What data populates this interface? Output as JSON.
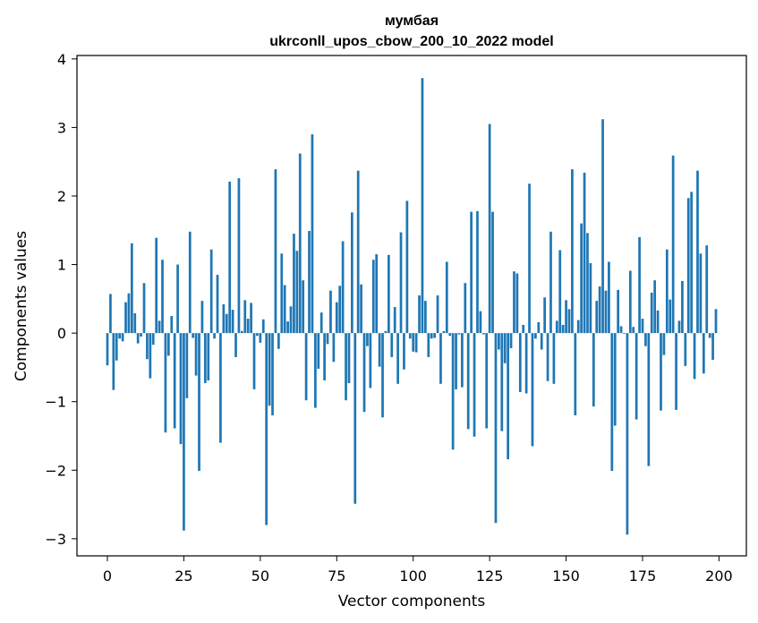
{
  "chart_data": {
    "type": "bar",
    "title": "мумбая",
    "subtitle": "ukrconll_upos_cbow_200_10_2022 model",
    "xlabel": "Vector components",
    "ylabel": "Components values",
    "xlim": [
      -9.95,
      208.95
    ],
    "ylim": [
      -3.25,
      4.05
    ],
    "xticks": [
      0,
      25,
      50,
      75,
      100,
      125,
      150,
      175,
      200
    ],
    "yticks": [
      -3,
      -2,
      -1,
      0,
      1,
      2,
      3,
      4
    ],
    "color": "#1f77b4",
    "grid": false,
    "x": [
      0,
      1,
      2,
      3,
      4,
      5,
      6,
      7,
      8,
      9,
      10,
      11,
      12,
      13,
      14,
      15,
      16,
      17,
      18,
      19,
      20,
      21,
      22,
      23,
      24,
      25,
      26,
      27,
      28,
      29,
      30,
      31,
      32,
      33,
      34,
      35,
      36,
      37,
      38,
      39,
      40,
      41,
      42,
      43,
      44,
      45,
      46,
      47,
      48,
      49,
      50,
      51,
      52,
      53,
      54,
      55,
      56,
      57,
      58,
      59,
      60,
      61,
      62,
      63,
      64,
      65,
      66,
      67,
      68,
      69,
      70,
      71,
      72,
      73,
      74,
      75,
      76,
      77,
      78,
      79,
      80,
      81,
      82,
      83,
      84,
      85,
      86,
      87,
      88,
      89,
      90,
      91,
      92,
      93,
      94,
      95,
      96,
      97,
      98,
      99,
      100,
      101,
      102,
      103,
      104,
      105,
      106,
      107,
      108,
      109,
      110,
      111,
      112,
      113,
      114,
      115,
      116,
      117,
      118,
      119,
      120,
      121,
      122,
      123,
      124,
      125,
      126,
      127,
      128,
      129,
      130,
      131,
      132,
      133,
      134,
      135,
      136,
      137,
      138,
      139,
      140,
      141,
      142,
      143,
      144,
      145,
      146,
      147,
      148,
      149,
      150,
      151,
      152,
      153,
      154,
      155,
      156,
      157,
      158,
      159,
      160,
      161,
      162,
      163,
      164,
      165,
      166,
      167,
      168,
      169,
      170,
      171,
      172,
      173,
      174,
      175,
      176,
      177,
      178,
      179,
      180,
      181,
      182,
      183,
      184,
      185,
      186,
      187,
      188,
      189,
      190,
      191,
      192,
      193,
      194,
      195,
      196,
      197,
      198,
      199
    ],
    "values": [
      -0.47,
      0.57,
      -0.83,
      -0.4,
      -0.08,
      -0.12,
      0.45,
      0.58,
      1.31,
      0.29,
      -0.15,
      -0.05,
      0.73,
      -0.38,
      -0.66,
      -0.17,
      1.39,
      0.18,
      1.07,
      -1.45,
      -0.33,
      0.25,
      -1.39,
      1.0,
      -1.62,
      -2.88,
      -0.95,
      1.48,
      -0.07,
      -0.62,
      -2.01,
      0.47,
      -0.73,
      -0.69,
      1.22,
      -0.08,
      0.85,
      -1.6,
      0.42,
      0.28,
      2.21,
      0.34,
      -0.35,
      2.26,
      0.03,
      0.48,
      0.21,
      0.44,
      -0.82,
      -0.04,
      -0.14,
      0.2,
      -2.8,
      -1.06,
      -1.2,
      2.39,
      -0.23,
      1.16,
      0.7,
      0.17,
      0.39,
      1.45,
      1.2,
      2.62,
      0.77,
      -0.98,
      1.49,
      2.9,
      -1.09,
      -0.52,
      0.3,
      -0.69,
      -0.16,
      0.62,
      -0.42,
      0.45,
      0.69,
      1.34,
      -0.98,
      -0.73,
      1.76,
      -2.49,
      2.37,
      0.71,
      -1.15,
      -0.19,
      -0.8,
      1.07,
      1.15,
      -0.49,
      -1.23,
      0.03,
      1.14,
      -0.35,
      0.38,
      -0.74,
      1.47,
      -0.53,
      1.93,
      -0.08,
      -0.27,
      -0.28,
      0.55,
      3.72,
      0.47,
      -0.35,
      -0.08,
      -0.07,
      0.55,
      -0.74,
      0.03,
      1.04,
      -0.04,
      -1.7,
      -0.82,
      -0.02,
      -0.79,
      0.73,
      -1.4,
      1.77,
      -1.51,
      1.78,
      0.32,
      -0.02,
      -1.39,
      3.05,
      1.77,
      -2.77,
      -0.24,
      -1.43,
      -0.44,
      -1.84,
      -0.22,
      0.9,
      0.87,
      -0.86,
      0.12,
      -0.88,
      2.18,
      -1.65,
      -0.08,
      0.16,
      -0.24,
      0.52,
      -0.7,
      1.48,
      -0.74,
      0.18,
      1.21,
      0.12,
      0.48,
      0.35,
      2.39,
      -1.2,
      0.19,
      1.6,
      2.34,
      1.46,
      1.02,
      -1.07,
      0.47,
      0.68,
      3.12,
      0.62,
      1.04,
      -2.01,
      -1.35,
      0.63,
      0.1,
      -0.01,
      -2.94,
      0.91,
      0.09,
      -1.26,
      1.4,
      0.21,
      -0.19,
      -1.94,
      0.59,
      0.77,
      0.33,
      -1.13,
      -0.32,
      1.22,
      0.49,
      2.59,
      -1.12,
      0.18,
      0.76,
      -0.48,
      1.97,
      2.06,
      -0.67,
      2.37,
      1.16,
      -0.59,
      1.28,
      -0.07,
      -0.39,
      0.35
    ]
  }
}
